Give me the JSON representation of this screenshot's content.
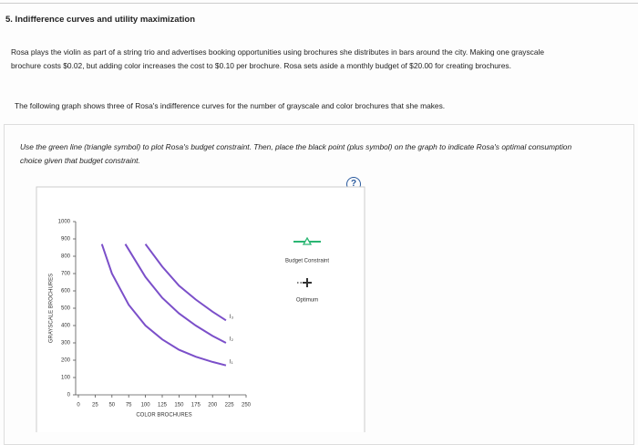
{
  "header": {
    "title": "5. Indifference curves and utility maximization"
  },
  "problem": {
    "paragraphs": [
      "Rosa plays the violin as part of a string trio and advertises booking opportunities using brochures she distributes in bars around the city. Making one grayscale brochure costs $0.02, but adding color increases the cost to $0.10 per brochure. Rosa sets aside a monthly budget of $20.00 for creating brochures.",
      "The following graph shows three of Rosa's indifference curves for the number of grayscale and color brochures that she makes."
    ],
    "instruction": "Use the green line (triangle symbol) to plot Rosa's budget constraint. Then, place the black point (plus symbol) on the graph to indicate Rosa's optimal consumption choice given that budget constraint.",
    "help": "?"
  },
  "chart_data": {
    "type": "line",
    "x_label": "COLOR BROCHURES",
    "y_label": "GRAYSCALE BROCHURES",
    "xlim": [
      0,
      250
    ],
    "xticks": [
      0,
      25,
      50,
      75,
      100,
      125,
      150,
      175,
      200,
      225,
      250
    ],
    "ylim": [
      0,
      1000
    ],
    "yticks": [
      0,
      100,
      200,
      300,
      400,
      500,
      600,
      700,
      800,
      900,
      1000
    ],
    "series": [
      {
        "name": "I₁",
        "color": "#7b4fc9",
        "x": [
          35,
          50,
          75,
          100,
          125,
          150,
          175,
          200,
          220
        ],
        "values": [
          870,
          700,
          520,
          400,
          320,
          260,
          220,
          190,
          170
        ]
      },
      {
        "name": "I₂",
        "color": "#7b4fc9",
        "x": [
          70,
          100,
          125,
          150,
          175,
          200,
          220
        ],
        "values": [
          870,
          680,
          560,
          470,
          400,
          340,
          300
        ]
      },
      {
        "name": "I₃",
        "color": "#7b4fc9",
        "x": [
          100,
          125,
          150,
          175,
          200,
          220
        ],
        "values": [
          870,
          740,
          630,
          550,
          480,
          430
        ]
      }
    ],
    "tools": [
      {
        "name": "Budget Constraint",
        "color": "#2bb673"
      },
      {
        "name": "Optimum",
        "color": "#333333"
      }
    ]
  }
}
